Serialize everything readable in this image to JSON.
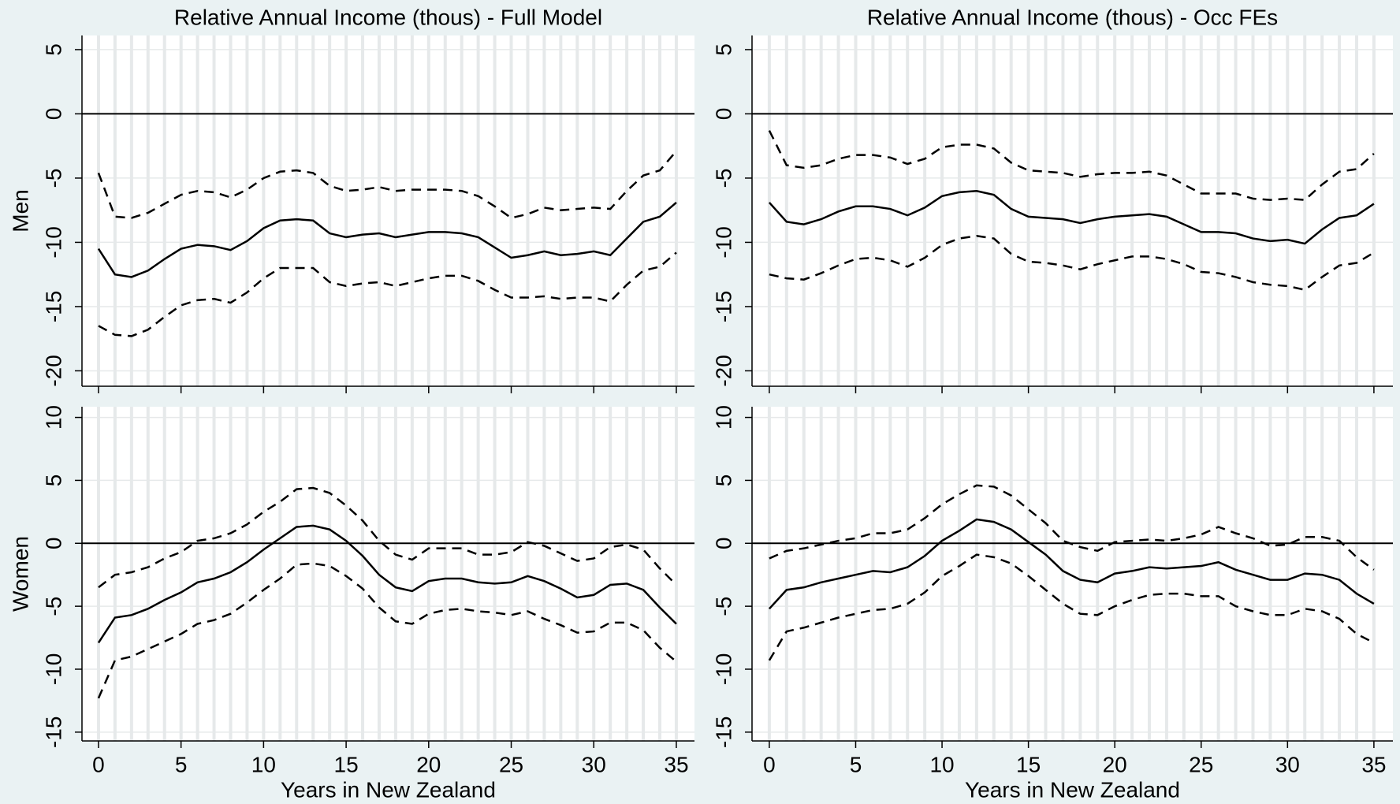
{
  "chart_data": [
    {
      "type": "line",
      "title": "Relative Annual Income (thous) - Full Model",
      "ylabel": "Men",
      "x": [
        0,
        1,
        2,
        3,
        4,
        5,
        6,
        7,
        8,
        9,
        10,
        11,
        12,
        13,
        14,
        15,
        16,
        17,
        18,
        19,
        20,
        21,
        22,
        23,
        24,
        25,
        26,
        27,
        28,
        29,
        30,
        31,
        32,
        33,
        34,
        35
      ],
      "series": [
        {
          "style": "solid",
          "color": "#000000",
          "values": [
            -10.5,
            -12.5,
            -12.7,
            -12.2,
            -11.3,
            -10.5,
            -10.2,
            -10.3,
            -10.6,
            -9.9,
            -8.9,
            -8.3,
            -8.2,
            -8.3,
            -9.3,
            -9.6,
            -9.4,
            -9.3,
            -9.6,
            -9.4,
            -9.2,
            -9.2,
            -9.3,
            -9.6,
            -10.4,
            -11.2,
            -11.0,
            -10.7,
            -11.0,
            -10.9,
            -10.7,
            -11.0,
            -9.7,
            -8.4,
            -8.0,
            -6.9
          ]
        },
        {
          "style": "dashed",
          "color": "#000000",
          "values": [
            -4.6,
            -8.0,
            -8.1,
            -7.7,
            -7.0,
            -6.3,
            -6.0,
            -6.1,
            -6.5,
            -5.9,
            -5.0,
            -4.5,
            -4.4,
            -4.6,
            -5.6,
            -6.0,
            -5.9,
            -5.7,
            -6.0,
            -5.9,
            -5.9,
            -5.9,
            -6.0,
            -6.4,
            -7.2,
            -8.1,
            -7.8,
            -7.3,
            -7.5,
            -7.4,
            -7.3,
            -7.4,
            -6.0,
            -4.8,
            -4.4,
            -2.9
          ]
        },
        {
          "style": "dashed",
          "color": "#000000",
          "values": [
            -16.5,
            -17.2,
            -17.3,
            -16.8,
            -15.8,
            -14.9,
            -14.5,
            -14.4,
            -14.7,
            -13.9,
            -12.8,
            -12.0,
            -12.0,
            -12.0,
            -13.1,
            -13.4,
            -13.2,
            -13.1,
            -13.4,
            -13.1,
            -12.8,
            -12.6,
            -12.6,
            -13.0,
            -13.7,
            -14.3,
            -14.3,
            -14.2,
            -14.4,
            -14.3,
            -14.3,
            -14.6,
            -13.3,
            -12.2,
            -11.9,
            -10.8
          ]
        }
      ],
      "xlim": [
        -1,
        36.1
      ],
      "xticks": [
        0,
        5,
        10,
        15,
        20,
        25,
        30,
        35
      ],
      "ylim": [
        -21.2,
        6.1
      ],
      "yticks": [
        -20,
        -15,
        -10,
        -5,
        0,
        5
      ],
      "grid": true,
      "yline": 0
    },
    {
      "type": "line",
      "title": "Relative Annual Income (thous) - Occ FEs",
      "x": [
        0,
        1,
        2,
        3,
        4,
        5,
        6,
        7,
        8,
        9,
        10,
        11,
        12,
        13,
        14,
        15,
        16,
        17,
        18,
        19,
        20,
        21,
        22,
        23,
        24,
        25,
        26,
        27,
        28,
        29,
        30,
        31,
        32,
        33,
        34,
        35
      ],
      "series": [
        {
          "style": "solid",
          "color": "#000000",
          "values": [
            -6.9,
            -8.4,
            -8.6,
            -8.2,
            -7.6,
            -7.2,
            -7.2,
            -7.4,
            -7.9,
            -7.3,
            -6.4,
            -6.1,
            -6.0,
            -6.3,
            -7.4,
            -8.0,
            -8.1,
            -8.2,
            -8.5,
            -8.2,
            -8.0,
            -7.9,
            -7.8,
            -8.0,
            -8.6,
            -9.2,
            -9.2,
            -9.3,
            -9.7,
            -9.9,
            -9.8,
            -10.1,
            -9.0,
            -8.1,
            -7.9,
            -7.0
          ]
        },
        {
          "style": "dashed",
          "color": "#000000",
          "values": [
            -1.3,
            -4.0,
            -4.2,
            -4.0,
            -3.5,
            -3.2,
            -3.2,
            -3.4,
            -3.9,
            -3.5,
            -2.6,
            -2.4,
            -2.4,
            -2.7,
            -3.8,
            -4.4,
            -4.5,
            -4.6,
            -4.9,
            -4.7,
            -4.6,
            -4.6,
            -4.5,
            -4.8,
            -5.5,
            -6.2,
            -6.2,
            -6.2,
            -6.6,
            -6.7,
            -6.6,
            -6.7,
            -5.5,
            -4.5,
            -4.3,
            -3.1
          ]
        },
        {
          "style": "dashed",
          "color": "#000000",
          "values": [
            -12.5,
            -12.8,
            -12.9,
            -12.4,
            -11.8,
            -11.3,
            -11.2,
            -11.4,
            -11.9,
            -11.2,
            -10.2,
            -9.7,
            -9.5,
            -9.7,
            -10.9,
            -11.5,
            -11.6,
            -11.8,
            -12.1,
            -11.7,
            -11.4,
            -11.1,
            -11.1,
            -11.3,
            -11.7,
            -12.3,
            -12.4,
            -12.7,
            -13.1,
            -13.3,
            -13.4,
            -13.7,
            -12.7,
            -11.8,
            -11.6,
            -10.8
          ]
        }
      ],
      "xlim": [
        -1,
        36.1
      ],
      "xticks": [
        0,
        5,
        10,
        15,
        20,
        25,
        30,
        35
      ],
      "ylim": [
        -21.2,
        6.1
      ],
      "yticks": [
        -20,
        -15,
        -10,
        -5,
        0,
        5
      ],
      "grid": true,
      "yline": 0
    },
    {
      "type": "line",
      "ylabel": "Women",
      "xlabel": "Years in New Zealand",
      "x": [
        0,
        1,
        2,
        3,
        4,
        5,
        6,
        7,
        8,
        9,
        10,
        11,
        12,
        13,
        14,
        15,
        16,
        17,
        18,
        19,
        20,
        21,
        22,
        23,
        24,
        25,
        26,
        27,
        28,
        29,
        30,
        31,
        32,
        33,
        34,
        35
      ],
      "series": [
        {
          "style": "solid",
          "color": "#000000",
          "values": [
            -7.9,
            -5.9,
            -5.7,
            -5.2,
            -4.5,
            -3.9,
            -3.1,
            -2.8,
            -2.3,
            -1.5,
            -0.5,
            0.4,
            1.3,
            1.4,
            1.1,
            0.2,
            -1.0,
            -2.5,
            -3.5,
            -3.8,
            -3.0,
            -2.8,
            -2.8,
            -3.1,
            -3.2,
            -3.1,
            -2.6,
            -3.0,
            -3.6,
            -4.3,
            -4.1,
            -3.3,
            -3.2,
            -3.7,
            -5.1,
            -6.4
          ]
        },
        {
          "style": "dashed",
          "color": "#000000",
          "values": [
            -3.5,
            -2.5,
            -2.3,
            -1.9,
            -1.2,
            -0.7,
            0.2,
            0.4,
            0.8,
            1.5,
            2.5,
            3.3,
            4.3,
            4.4,
            4.0,
            3.0,
            1.8,
            0.2,
            -0.9,
            -1.3,
            -0.4,
            -0.4,
            -0.4,
            -0.9,
            -0.9,
            -0.7,
            0.1,
            -0.2,
            -0.8,
            -1.4,
            -1.2,
            -0.3,
            -0.1,
            -0.5,
            -2.0,
            -3.3
          ]
        },
        {
          "style": "dashed",
          "color": "#000000",
          "values": [
            -12.3,
            -9.3,
            -9.0,
            -8.4,
            -7.8,
            -7.2,
            -6.4,
            -6.1,
            -5.6,
            -4.7,
            -3.7,
            -2.8,
            -1.7,
            -1.6,
            -1.8,
            -2.6,
            -3.6,
            -5.1,
            -6.2,
            -6.4,
            -5.6,
            -5.3,
            -5.2,
            -5.4,
            -5.5,
            -5.7,
            -5.4,
            -6.0,
            -6.5,
            -7.1,
            -7.0,
            -6.3,
            -6.3,
            -6.9,
            -8.3,
            -9.4
          ]
        }
      ],
      "xlim": [
        -1,
        36.1
      ],
      "xticks": [
        0,
        5,
        10,
        15,
        20,
        25,
        30,
        35
      ],
      "ylim": [
        -15.7,
        10.85
      ],
      "yticks": [
        -15,
        -10,
        -5,
        0,
        5,
        10
      ],
      "grid": true,
      "yline": 0
    },
    {
      "type": "line",
      "xlabel": "Years in New Zealand",
      "x": [
        0,
        1,
        2,
        3,
        4,
        5,
        6,
        7,
        8,
        9,
        10,
        11,
        12,
        13,
        14,
        15,
        16,
        17,
        18,
        19,
        20,
        21,
        22,
        23,
        24,
        25,
        26,
        27,
        28,
        29,
        30,
        31,
        32,
        33,
        34,
        35
      ],
      "series": [
        {
          "style": "solid",
          "color": "#000000",
          "values": [
            -5.2,
            -3.7,
            -3.5,
            -3.1,
            -2.8,
            -2.5,
            -2.2,
            -2.3,
            -1.9,
            -1.0,
            0.2,
            1.0,
            1.9,
            1.7,
            1.1,
            0.1,
            -0.9,
            -2.2,
            -2.9,
            -3.1,
            -2.4,
            -2.2,
            -1.9,
            -2.0,
            -1.9,
            -1.8,
            -1.5,
            -2.1,
            -2.5,
            -2.9,
            -2.9,
            -2.4,
            -2.5,
            -2.9,
            -4.0,
            -4.8
          ]
        },
        {
          "style": "dashed",
          "color": "#000000",
          "values": [
            -1.2,
            -0.6,
            -0.4,
            -0.1,
            0.2,
            0.4,
            0.8,
            0.8,
            1.1,
            2.0,
            3.1,
            3.9,
            4.6,
            4.5,
            3.8,
            2.7,
            1.6,
            0.2,
            -0.3,
            -0.6,
            0.1,
            0.2,
            0.3,
            0.2,
            0.4,
            0.7,
            1.3,
            0.8,
            0.4,
            -0.2,
            -0.1,
            0.5,
            0.5,
            0.2,
            -1.1,
            -2.1
          ]
        },
        {
          "style": "dashed",
          "color": "#000000",
          "values": [
            -9.3,
            -7.0,
            -6.7,
            -6.3,
            -5.9,
            -5.6,
            -5.3,
            -5.2,
            -4.8,
            -3.9,
            -2.6,
            -1.8,
            -0.9,
            -1.1,
            -1.6,
            -2.6,
            -3.7,
            -4.8,
            -5.6,
            -5.7,
            -5.0,
            -4.5,
            -4.1,
            -4.0,
            -4.0,
            -4.2,
            -4.2,
            -5.0,
            -5.4,
            -5.7,
            -5.7,
            -5.2,
            -5.4,
            -6.0,
            -7.2,
            -7.9
          ]
        }
      ],
      "xlim": [
        -1,
        36.1
      ],
      "xticks": [
        0,
        5,
        10,
        15,
        20,
        25,
        30,
        35
      ],
      "ylim": [
        -15.7,
        10.85
      ],
      "yticks": [
        -15,
        -10,
        -5,
        0,
        5,
        10
      ],
      "grid": true,
      "yline": 0
    }
  ]
}
